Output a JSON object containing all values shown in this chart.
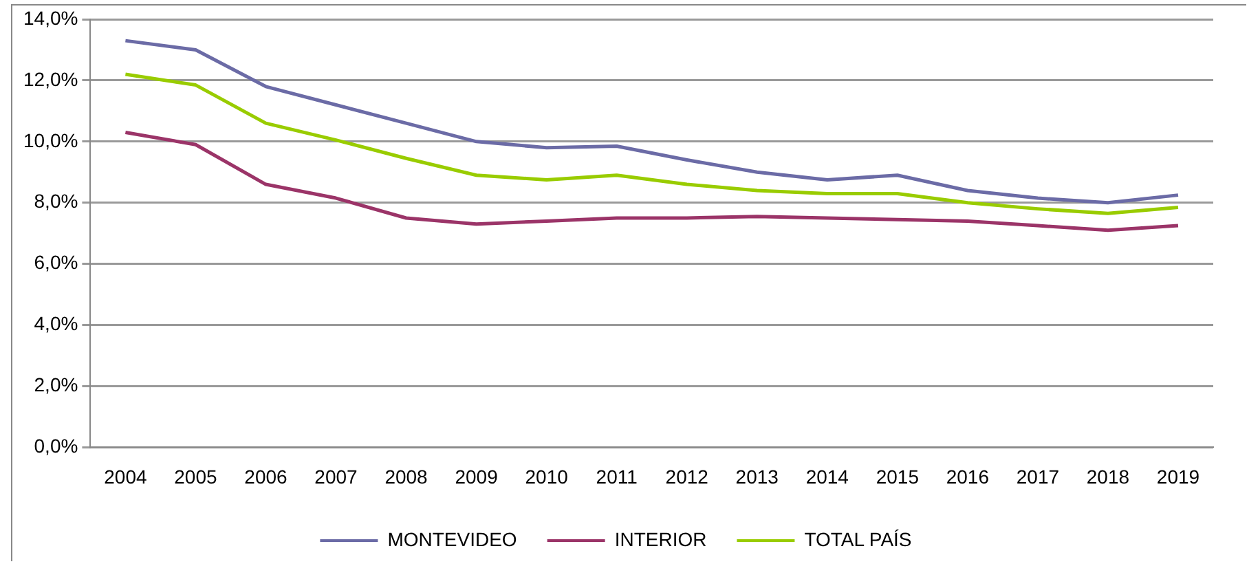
{
  "chart_data": {
    "type": "line",
    "categories": [
      "2004",
      "2005",
      "2006",
      "2007",
      "2008",
      "2009",
      "2010",
      "2011",
      "2012",
      "2013",
      "2014",
      "2015",
      "2016",
      "2017",
      "2018",
      "2019"
    ],
    "series": [
      {
        "name": "MONTEVIDEO",
        "color": "#6b6ba6",
        "values": [
          13.3,
          13.0,
          11.8,
          11.2,
          10.6,
          10.0,
          9.8,
          9.85,
          9.4,
          9.0,
          8.75,
          8.9,
          8.4,
          8.15,
          8.0,
          8.25
        ]
      },
      {
        "name": "INTERIOR",
        "color": "#9b3468",
        "values": [
          10.3,
          9.9,
          8.6,
          8.15,
          7.5,
          7.3,
          7.4,
          7.5,
          7.5,
          7.55,
          7.5,
          7.45,
          7.4,
          7.25,
          7.1,
          7.25
        ]
      },
      {
        "name": "TOTAL PAÍS",
        "color": "#99cc00",
        "values": [
          12.2,
          11.85,
          10.6,
          10.05,
          9.45,
          8.9,
          8.75,
          8.9,
          8.6,
          8.4,
          8.3,
          8.3,
          8.0,
          7.8,
          7.65,
          7.85
        ]
      }
    ],
    "ylim": [
      0,
      14
    ],
    "yticks": [
      {
        "value": 0,
        "label": "0,0%"
      },
      {
        "value": 2,
        "label": "2,0%"
      },
      {
        "value": 4,
        "label": "4,0%"
      },
      {
        "value": 6,
        "label": "6,0%"
      },
      {
        "value": 8,
        "label": "8,0%"
      },
      {
        "value": 10,
        "label": "10,0%"
      },
      {
        "value": 12,
        "label": "12,0%"
      },
      {
        "value": 14,
        "label": "14,0%"
      }
    ],
    "grid": "y",
    "legend": "bottom",
    "marker": "none",
    "line_style": "solid"
  }
}
